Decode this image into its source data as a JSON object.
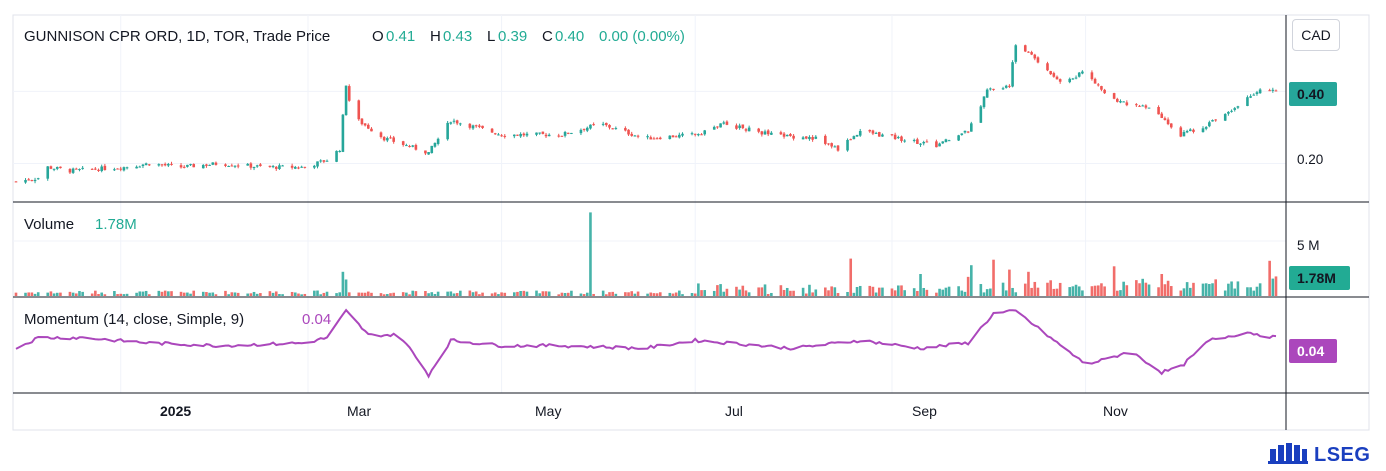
{
  "header": {
    "symbol": "GUNNISON CPR ORD, 1D, TOR, Trade Price",
    "open_label": "O",
    "open": "0.41",
    "high_label": "H",
    "high": "0.43",
    "low_label": "L",
    "low": "0.39",
    "close_label": "C",
    "close": "0.40",
    "change": "0.00 (0.00%)"
  },
  "currency_button": "CAD",
  "price_axis": {
    "ticks": [
      "0.40",
      "0.20"
    ],
    "last_badge": "0.40"
  },
  "volume_pane": {
    "title": "Volume",
    "value": "1.78M",
    "axis_tick": "5 M",
    "badge": "1.78M"
  },
  "momentum_pane": {
    "title": "Momentum (14, close, Simple, 9)",
    "value": "0.04",
    "badge": "0.04"
  },
  "time_axis": [
    "2025",
    "Mar",
    "May",
    "Jul",
    "Sep",
    "Nov"
  ],
  "logo": {
    "text": "LSEG",
    "icon": "lseg-emblem-icon"
  },
  "colors": {
    "up": "#26a69a",
    "down": "#ef5350",
    "momentum": "#ab47bc",
    "volume_badge": "#22ab94"
  },
  "chart_data": {
    "type": "candlestick",
    "x_range": [
      "2024-11-29",
      "2025-12-31"
    ],
    "price_ylim": [
      0.11,
      0.57
    ],
    "price_anchors": [
      [
        "2024-11-29",
        0.15
      ],
      [
        "2024-12-06",
        0.16
      ],
      [
        "2024-12-09",
        0.19
      ],
      [
        "2024-12-16",
        0.18
      ],
      [
        "2025-01-02",
        0.19
      ],
      [
        "2025-01-10",
        0.2
      ],
      [
        "2025-01-20",
        0.19
      ],
      [
        "2025-02-01",
        0.2
      ],
      [
        "2025-02-15",
        0.19
      ],
      [
        "2025-02-28",
        0.19
      ],
      [
        "2025-03-07",
        0.21
      ],
      [
        "2025-03-11",
        0.24
      ],
      [
        "2025-03-13",
        0.42
      ],
      [
        "2025-03-15",
        0.33
      ],
      [
        "2025-03-25",
        0.27
      ],
      [
        "2025-04-08",
        0.23
      ],
      [
        "2025-04-15",
        0.32
      ],
      [
        "2025-05-01",
        0.28
      ],
      [
        "2025-05-20",
        0.28
      ],
      [
        "2025-06-01",
        0.31
      ],
      [
        "2025-06-15",
        0.27
      ],
      [
        "2025-07-01",
        0.28
      ],
      [
        "2025-07-10",
        0.31
      ],
      [
        "2025-07-25",
        0.28
      ],
      [
        "2025-08-08",
        0.27
      ],
      [
        "2025-08-15",
        0.24
      ],
      [
        "2025-08-22",
        0.29
      ],
      [
        "2025-09-15",
        0.25
      ],
      [
        "2025-09-25",
        0.29
      ],
      [
        "2025-10-01",
        0.4
      ],
      [
        "2025-10-08",
        0.42
      ],
      [
        "2025-10-10",
        0.53
      ],
      [
        "2025-10-15",
        0.5
      ],
      [
        "2025-10-25",
        0.42
      ],
      [
        "2025-11-01",
        0.46
      ],
      [
        "2025-11-08",
        0.38
      ],
      [
        "2025-11-22",
        0.35
      ],
      [
        "2025-12-01",
        0.28
      ],
      [
        "2025-12-10",
        0.31
      ],
      [
        "2025-12-25",
        0.4
      ],
      [
        "2025-12-31",
        0.4
      ]
    ],
    "volume_ylim": [
      0,
      8000000
    ],
    "volume_spikes": [
      [
        "2025-03-12",
        2200000
      ],
      [
        "2025-03-13",
        1500000
      ],
      [
        "2025-05-29",
        7600000
      ],
      [
        "2025-08-19",
        3400000
      ],
      [
        "2025-09-10",
        2000000
      ],
      [
        "2025-09-26",
        2800000
      ],
      [
        "2025-10-03",
        3300000
      ],
      [
        "2025-10-08",
        2400000
      ],
      [
        "2025-10-14",
        2200000
      ],
      [
        "2025-11-10",
        2700000
      ],
      [
        "2025-11-25",
        2000000
      ],
      [
        "2025-12-29",
        3200000
      ],
      [
        "2025-12-31",
        1780000
      ]
    ],
    "momentum_ylim": [
      -0.16,
      0.17
    ],
    "momentum_anchors": [
      [
        "2024-11-29",
        0.0
      ],
      [
        "2024-12-06",
        0.04
      ],
      [
        "2024-12-20",
        0.04
      ],
      [
        "2025-01-10",
        0.02
      ],
      [
        "2025-02-01",
        0.01
      ],
      [
        "2025-02-28",
        0.02
      ],
      [
        "2025-03-07",
        0.04
      ],
      [
        "2025-03-13",
        0.14
      ],
      [
        "2025-03-20",
        0.05
      ],
      [
        "2025-03-30",
        0.05
      ],
      [
        "2025-04-08",
        -0.1
      ],
      [
        "2025-04-15",
        0.03
      ],
      [
        "2025-05-01",
        0.01
      ],
      [
        "2025-05-20",
        0.01
      ],
      [
        "2025-06-15",
        0.0
      ],
      [
        "2025-07-01",
        0.03
      ],
      [
        "2025-08-01",
        0.0
      ],
      [
        "2025-08-22",
        0.03
      ],
      [
        "2025-09-10",
        0.0
      ],
      [
        "2025-09-25",
        0.02
      ],
      [
        "2025-10-03",
        0.13
      ],
      [
        "2025-10-10",
        0.14
      ],
      [
        "2025-10-22",
        0.03
      ],
      [
        "2025-11-01",
        -0.06
      ],
      [
        "2025-11-08",
        -0.04
      ],
      [
        "2025-11-15",
        -0.01
      ],
      [
        "2025-11-25",
        -0.09
      ],
      [
        "2025-12-01",
        -0.07
      ],
      [
        "2025-12-10",
        0.03
      ],
      [
        "2025-12-22",
        0.06
      ],
      [
        "2025-12-31",
        0.04
      ]
    ]
  }
}
